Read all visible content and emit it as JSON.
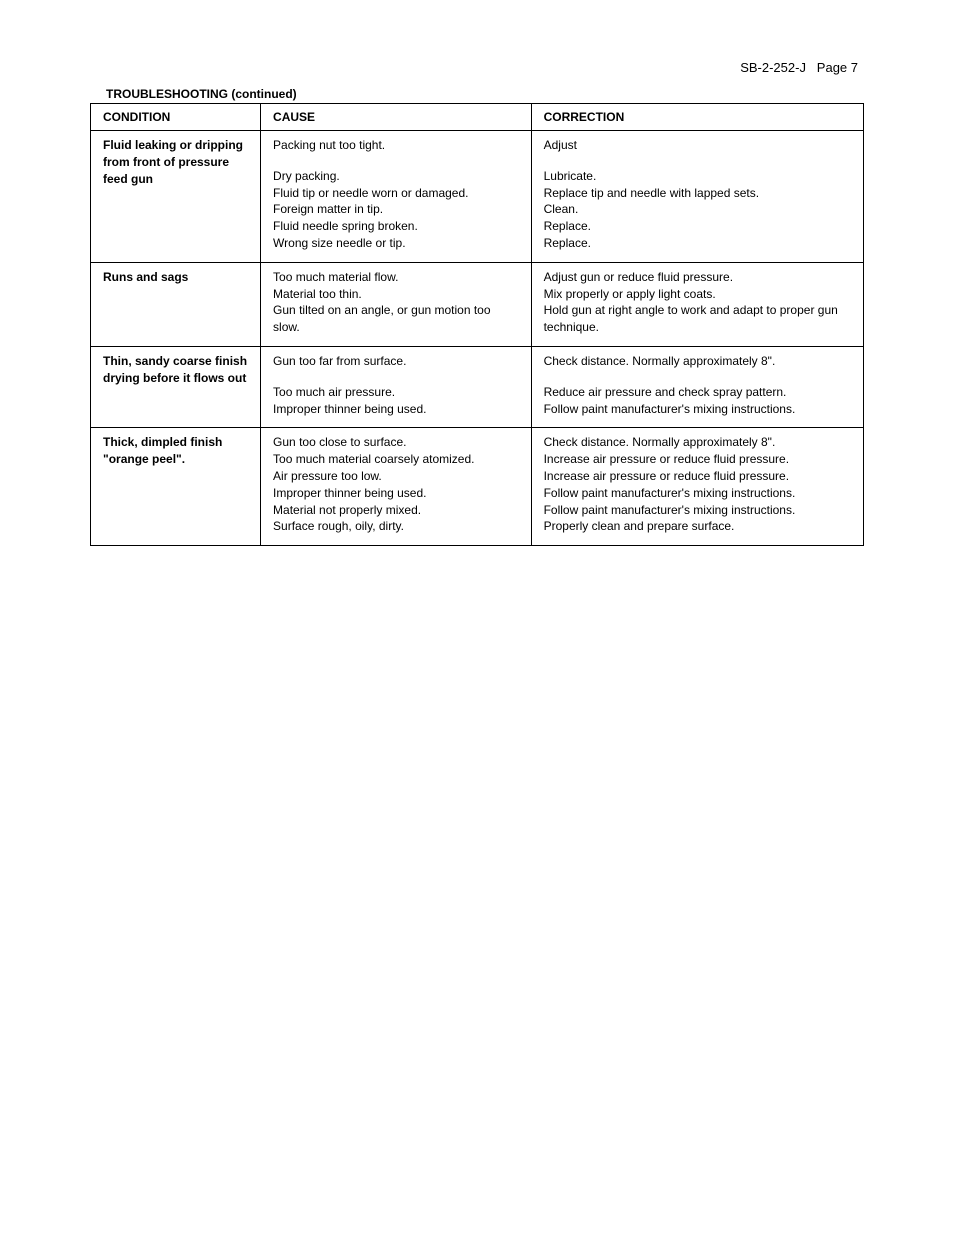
{
  "header": {
    "doc_id": "SB-2-252-J",
    "page_label": "Page 7"
  },
  "section_title": "TROUBLESHOOTING (continued)",
  "table": {
    "columns": [
      "CONDITION",
      "CAUSE",
      "CORRECTION"
    ],
    "rows": [
      {
        "condition": [
          "Fluid leaking or dripping",
          "from front of pressure",
          "feed gun"
        ],
        "cause_groups": [
          [
            "Packing nut too tight."
          ],
          [
            "Dry packing.",
            "Fluid tip or needle worn or damaged.",
            "Foreign matter in tip.",
            "Fluid needle spring broken.",
            "Wrong size needle or tip."
          ]
        ],
        "correction_groups": [
          [
            "Adjust"
          ],
          [
            "Lubricate.",
            "Replace tip and needle with lapped sets.",
            "Clean.",
            "Replace.",
            "Replace."
          ]
        ]
      },
      {
        "condition": [
          "Runs and sags"
        ],
        "cause_groups": [
          [
            "Too much material flow.",
            "Material too thin.",
            "Gun tilted on an angle, or gun motion too slow."
          ]
        ],
        "correction_groups": [
          [
            "Adjust gun or reduce fluid pressure.",
            "Mix properly or apply light coats.",
            "Hold gun at right angle to work and adapt to proper gun technique."
          ]
        ]
      },
      {
        "condition": [
          "Thin, sandy coarse finish",
          "drying before it flows out"
        ],
        "cause_groups": [
          [
            "Gun too far from surface."
          ],
          [
            "Too much air pressure.",
            "Improper thinner being used."
          ]
        ],
        "correction_groups": [
          [
            "Check distance. Normally approximately 8\"."
          ],
          [
            "Reduce air pressure and check spray pattern.",
            "Follow paint manufacturer's mixing instructions."
          ]
        ]
      },
      {
        "condition": [
          "Thick, dimpled finish",
          "\"orange peel\"."
        ],
        "cause_groups": [
          [
            "Gun too close to surface.",
            "Too much material coarsely atomized.",
            "Air pressure too low.",
            "Improper thinner being used.",
            "Material not properly mixed.",
            "Surface rough, oily, dirty."
          ]
        ],
        "correction_groups": [
          [
            "Check distance. Normally approximately 8\".",
            "Increase air pressure or reduce fluid pressure.",
            "Increase air pressure or reduce fluid pressure.",
            "Follow paint manufacturer's mixing instructions.",
            "Follow paint manufacturer's mixing instructions.",
            "Properly clean and prepare surface."
          ]
        ]
      }
    ]
  }
}
